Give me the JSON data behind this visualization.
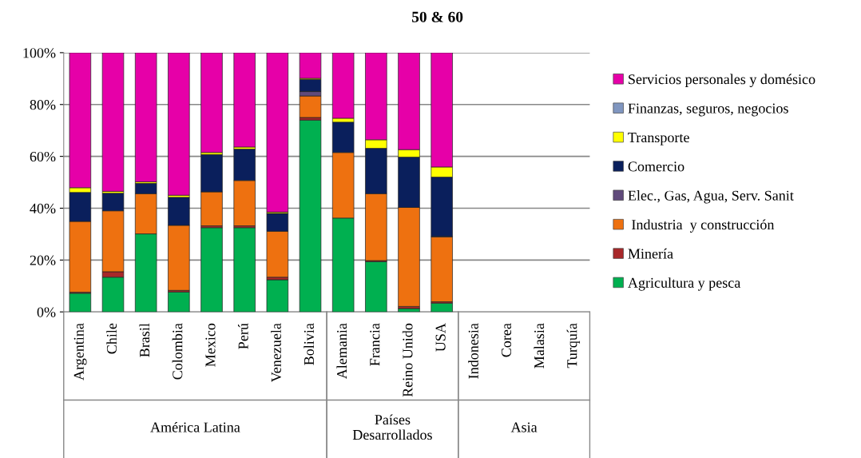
{
  "chart_data": {
    "type": "bar",
    "stacked": true,
    "title": "50 & 60",
    "categories": [
      "Argentina",
      "Chile",
      "Brasil",
      "Colombia",
      "Mexico",
      "Perú",
      "Venezuela",
      "Bolivia",
      "Alemania",
      "Francia",
      "Reino Unido",
      "USA",
      "Indonesia",
      "Corea",
      "Malasia",
      "Turquía"
    ],
    "series": [
      {
        "name": "Agricultura y pesca",
        "color": "#00b050",
        "values": [
          7.2,
          13.4,
          30.1,
          7.7,
          32.5,
          32.5,
          12.4,
          74.0,
          36.2,
          19.4,
          1.3,
          3.4,
          null,
          null,
          null,
          null
        ]
      },
      {
        "name": "Minería",
        "color": "#a8282a",
        "values": [
          0.4,
          2.1,
          null,
          0.6,
          0.7,
          0.7,
          1.0,
          1.0,
          null,
          0.4,
          0.8,
          0.5,
          null,
          null,
          null,
          null
        ]
      },
      {
        "name": " Industria  y construcción",
        "color": "#ee7110",
        "values": [
          27.3,
          23.5,
          15.5,
          25.1,
          13.1,
          17.5,
          17.7,
          8.3,
          25.3,
          25.8,
          38.2,
          25.0,
          null,
          null,
          null,
          null
        ]
      },
      {
        "name": "Elec., Gas, Agua, Serv. Sanit",
        "color": "#604a7b",
        "values": [
          null,
          null,
          null,
          null,
          null,
          null,
          null,
          1.7,
          null,
          null,
          null,
          0.3,
          null,
          null,
          null,
          null
        ]
      },
      {
        "name": "Comercio",
        "color": "#0a1f5c",
        "values": [
          11.2,
          6.8,
          4.0,
          10.8,
          14.4,
          12.1,
          6.9,
          4.7,
          11.7,
          17.5,
          19.4,
          22.8,
          null,
          null,
          null,
          null
        ]
      },
      {
        "name": "Transporte",
        "color": "#ffff00",
        "values": [
          1.8,
          0.7,
          0.6,
          0.8,
          0.8,
          0.8,
          0.5,
          0.4,
          1.5,
          3.3,
          2.9,
          3.9,
          null,
          null,
          null,
          null
        ]
      },
      {
        "name": "Finanzas, seguros, negocios",
        "color": "#8096c0",
        "values": [
          null,
          null,
          null,
          null,
          null,
          null,
          null,
          null,
          null,
          null,
          null,
          null,
          null,
          null,
          null,
          null
        ]
      },
      {
        "name": "Servicios personales y domésico",
        "color": "#e600a8",
        "values": [
          52.1,
          53.5,
          49.8,
          55.0,
          38.5,
          36.4,
          61.5,
          9.9,
          25.3,
          33.6,
          37.4,
          44.1,
          null,
          null,
          null,
          null
        ]
      }
    ],
    "ylim": [
      0,
      100
    ],
    "yticks": [
      {
        "value": 0,
        "label": "0%"
      },
      {
        "value": 20,
        "label": "20%"
      },
      {
        "value": 40,
        "label": "40%"
      },
      {
        "value": 60,
        "label": "60%"
      },
      {
        "value": 80,
        "label": "80%"
      },
      {
        "value": 100,
        "label": "100%"
      }
    ],
    "grid": "y",
    "legend": "right",
    "annotations": [
      "América Latina",
      "Países\nDesarrollados",
      "Asia"
    ]
  }
}
